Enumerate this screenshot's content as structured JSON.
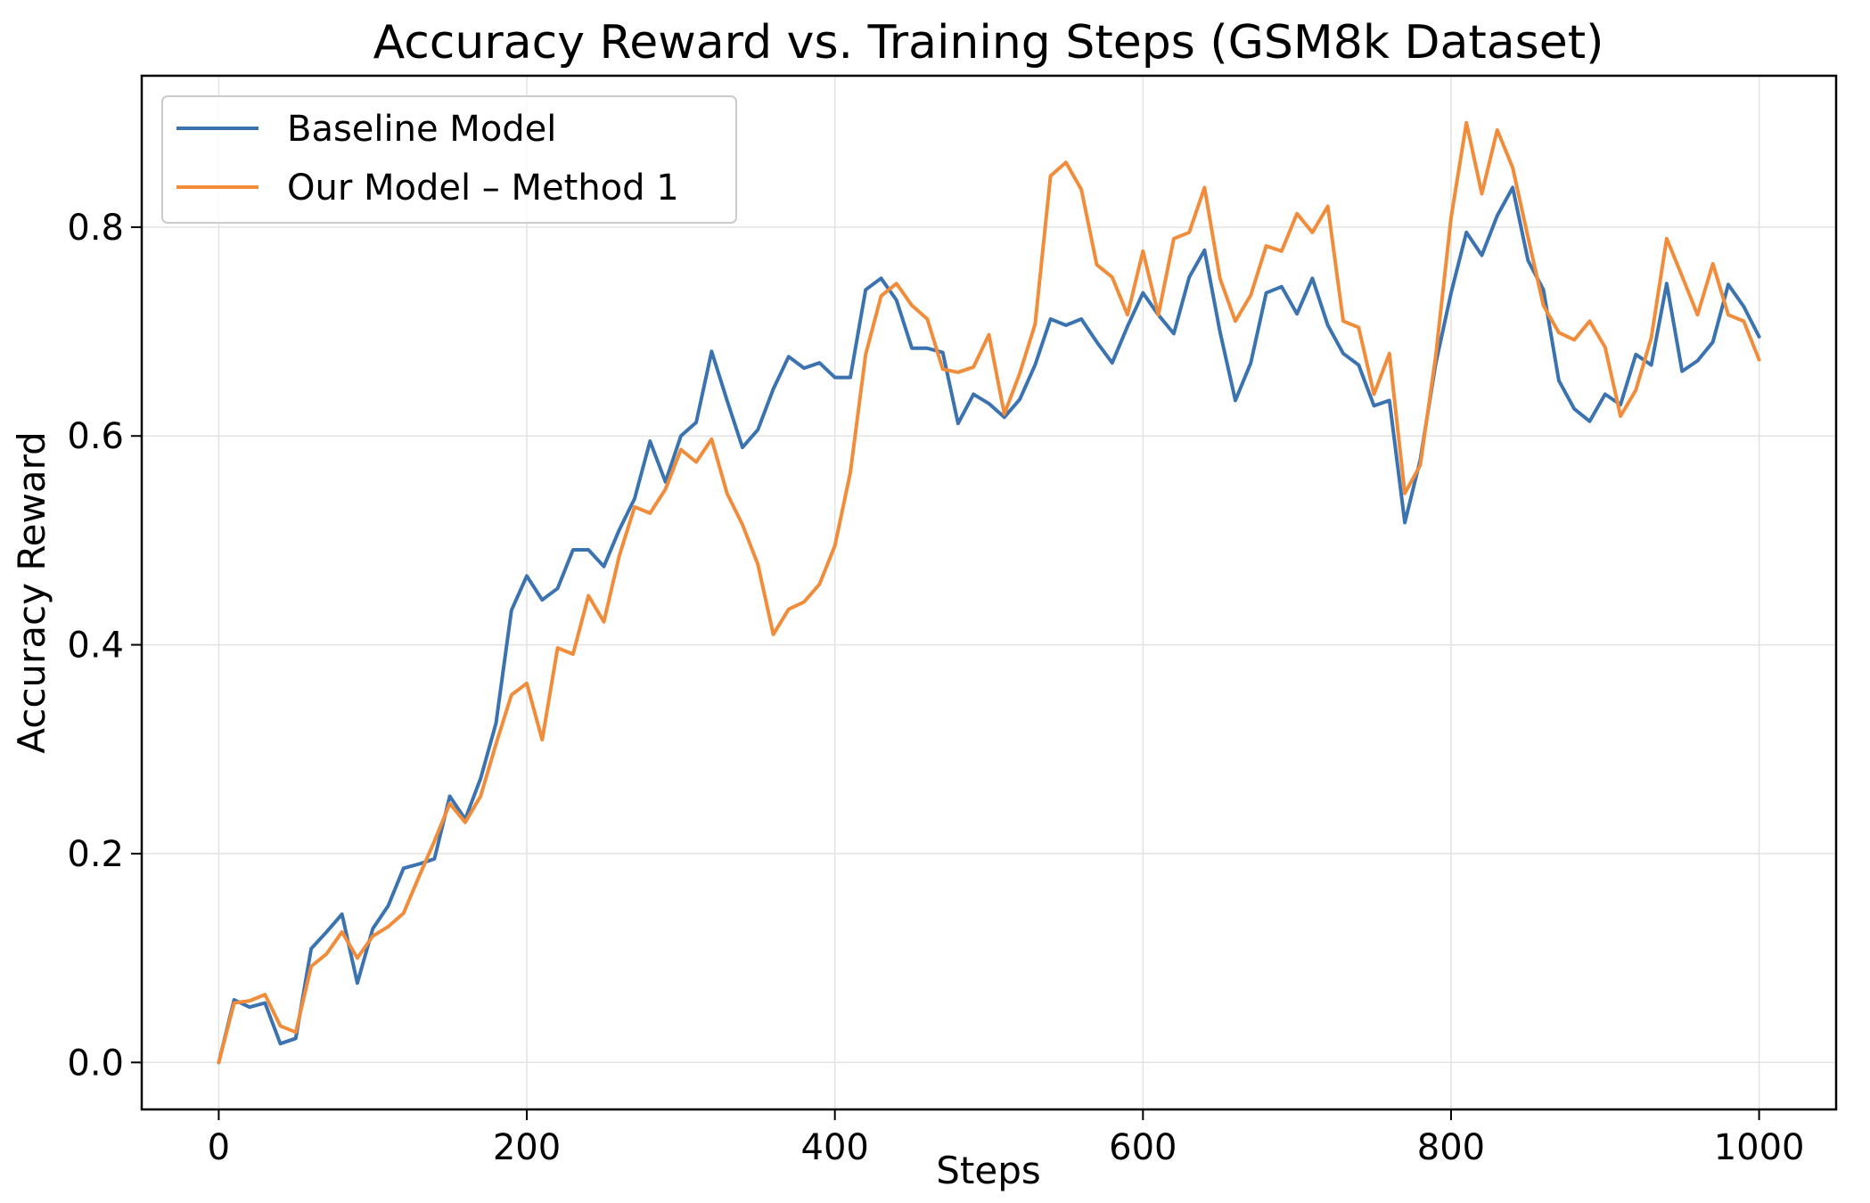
{
  "chart_data": {
    "type": "line",
    "title": "Accuracy Reward vs. Training Steps (GSM8k Dataset)",
    "xlabel": "Steps",
    "ylabel": "Accuracy Reward",
    "xlim": [
      -50,
      1050
    ],
    "ylim": [
      -0.045,
      0.945
    ],
    "xticks": [
      0,
      200,
      400,
      600,
      800,
      1000
    ],
    "xtick_labels": [
      "0",
      "200",
      "400",
      "600",
      "800",
      "1000"
    ],
    "yticks": [
      0.0,
      0.2,
      0.4,
      0.6,
      0.8
    ],
    "ytick_labels": [
      "0.0",
      "0.2",
      "0.4",
      "0.6",
      "0.8"
    ],
    "grid": true,
    "legend_position": "top-left",
    "x": [
      0,
      10,
      20,
      30,
      40,
      50,
      60,
      70,
      80,
      90,
      100,
      110,
      120,
      130,
      140,
      150,
      160,
      170,
      180,
      190,
      200,
      210,
      220,
      230,
      240,
      250,
      260,
      270,
      280,
      290,
      300,
      310,
      320,
      330,
      340,
      350,
      360,
      370,
      380,
      390,
      400,
      410,
      420,
      430,
      440,
      450,
      460,
      470,
      480,
      490,
      500,
      510,
      520,
      530,
      540,
      550,
      560,
      570,
      580,
      590,
      600,
      610,
      620,
      630,
      640,
      650,
      660,
      670,
      680,
      690,
      700,
      710,
      720,
      730,
      740,
      750,
      760,
      770,
      780,
      790,
      800,
      810,
      820,
      830,
      840,
      850,
      860,
      870,
      880,
      890,
      900,
      910,
      920,
      930,
      940,
      950,
      960,
      970,
      980,
      990,
      1000
    ],
    "series": [
      {
        "name": "Baseline Model",
        "color": "#3a73b0",
        "values": [
          0.0,
          0.06,
          0.053,
          0.057,
          0.018,
          0.023,
          0.109,
          0.125,
          0.142,
          0.076,
          0.128,
          0.15,
          0.186,
          0.19,
          0.195,
          0.255,
          0.233,
          0.272,
          0.325,
          0.433,
          0.466,
          0.443,
          0.454,
          0.491,
          0.491,
          0.475,
          0.51,
          0.54,
          0.595,
          0.556,
          0.6,
          0.613,
          0.681,
          0.634,
          0.589,
          0.606,
          0.645,
          0.676,
          0.665,
          0.67,
          0.656,
          0.656,
          0.74,
          0.751,
          0.73,
          0.684,
          0.684,
          0.68,
          0.612,
          0.64,
          0.631,
          0.618,
          0.635,
          0.668,
          0.712,
          0.706,
          0.712,
          0.69,
          0.67,
          0.705,
          0.737,
          0.716,
          0.698,
          0.752,
          0.778,
          0.7,
          0.634,
          0.67,
          0.737,
          0.743,
          0.717,
          0.751,
          0.706,
          0.679,
          0.668,
          0.629,
          0.634,
          0.517,
          0.577,
          0.669,
          0.737,
          0.795,
          0.773,
          0.811,
          0.838,
          0.768,
          0.74,
          0.653,
          0.626,
          0.614,
          0.64,
          0.63,
          0.678,
          0.668,
          0.746,
          0.662,
          0.672,
          0.69,
          0.745,
          0.724,
          0.695
        ]
      },
      {
        "name": "Our Model – Method 1",
        "color": "#f08c3a",
        "values": [
          0.0,
          0.057,
          0.059,
          0.065,
          0.035,
          0.029,
          0.092,
          0.104,
          0.125,
          0.1,
          0.121,
          0.13,
          0.143,
          0.178,
          0.212,
          0.248,
          0.23,
          0.255,
          0.305,
          0.352,
          0.363,
          0.309,
          0.397,
          0.391,
          0.447,
          0.422,
          0.485,
          0.532,
          0.526,
          0.549,
          0.587,
          0.575,
          0.597,
          0.545,
          0.515,
          0.477,
          0.41,
          0.434,
          0.441,
          0.458,
          0.495,
          0.565,
          0.678,
          0.734,
          0.746,
          0.725,
          0.712,
          0.664,
          0.661,
          0.666,
          0.697,
          0.621,
          0.66,
          0.707,
          0.849,
          0.862,
          0.836,
          0.764,
          0.752,
          0.716,
          0.777,
          0.716,
          0.789,
          0.795,
          0.838,
          0.751,
          0.71,
          0.735,
          0.782,
          0.777,
          0.813,
          0.795,
          0.82,
          0.71,
          0.704,
          0.64,
          0.679,
          0.545,
          0.572,
          0.676,
          0.809,
          0.9,
          0.832,
          0.893,
          0.857,
          0.79,
          0.725,
          0.699,
          0.692,
          0.71,
          0.685,
          0.619,
          0.644,
          0.694,
          0.789,
          0.753,
          0.716,
          0.765,
          0.716,
          0.71,
          0.673
        ]
      }
    ]
  }
}
